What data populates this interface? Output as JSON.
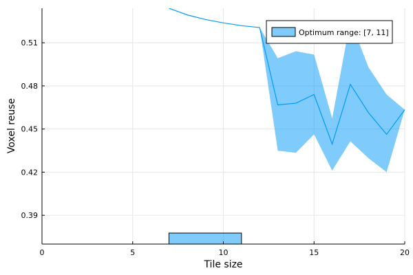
{
  "chart_data": {
    "type": "line",
    "xlabel": "Tile size",
    "ylabel": "Voxel reuse",
    "xlim": [
      0,
      20
    ],
    "ylim": [
      0.37,
      0.534
    ],
    "grid": true,
    "legend_position": "top-right",
    "x_ticks": [
      0,
      5,
      10,
      15,
      20
    ],
    "x_tick_labels": [
      "0",
      "5",
      "10",
      "15",
      "20"
    ],
    "y_ticks": [
      0.39,
      0.42,
      0.45,
      0.48,
      0.51
    ],
    "y_tick_labels": [
      "0.39",
      "0.42",
      "0.45",
      "0.48",
      "0.51"
    ],
    "series": [
      {
        "x": [
          7,
          8,
          9,
          10,
          11,
          12,
          13,
          14,
          15,
          16,
          17,
          18,
          19,
          20
        ],
        "y": [
          0.534,
          0.5294,
          0.5262,
          0.5238,
          0.5219,
          0.5206,
          0.4668,
          0.468,
          0.474,
          0.4395,
          0.4811,
          0.4614,
          0.4463,
          0.4634
        ],
        "band_lower": [
          0.534,
          0.5294,
          0.5262,
          0.5238,
          0.5219,
          0.5206,
          0.4349,
          0.4335,
          0.4463,
          0.4211,
          0.4415,
          0.4297,
          0.42,
          0.4634
        ],
        "band_upper": [
          0.534,
          0.5294,
          0.5262,
          0.5238,
          0.5219,
          0.5206,
          0.4993,
          0.5041,
          0.5018,
          0.4574,
          0.5256,
          0.493,
          0.474,
          0.4634
        ],
        "color": "#009af9",
        "band_color": "#009af9"
      },
      {
        "name": "Optimum range: [7, 11]",
        "type": "bar-range",
        "x_range": [
          7,
          11
        ],
        "color": "#009af9"
      }
    ]
  },
  "colors": {
    "line": "#009af9",
    "band": "#009af9",
    "grid": "#e6e6e6",
    "axis": "#000000"
  }
}
